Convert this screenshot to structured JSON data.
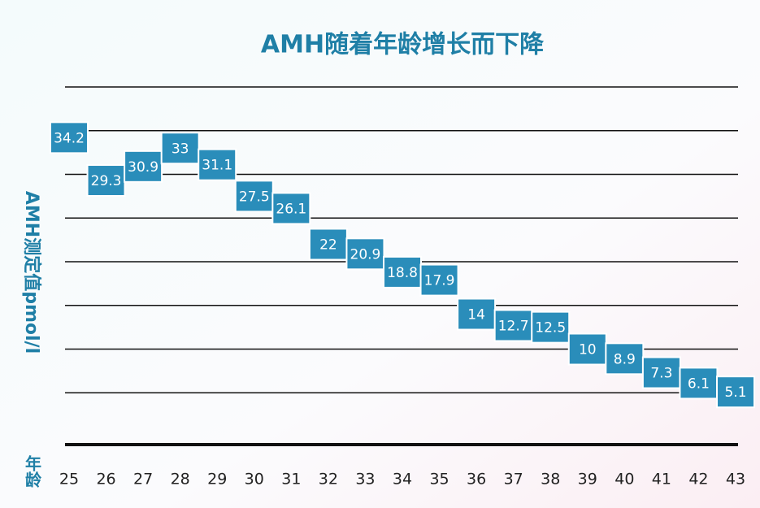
{
  "chart_data": {
    "type": "box-label",
    "title": "AMH随着年龄增长而下降",
    "y_label": "AMH测定值pmol/l",
    "x_label": "年龄",
    "categories": [
      "25",
      "26",
      "27",
      "28",
      "29",
      "30",
      "31",
      "32",
      "33",
      "34",
      "35",
      "36",
      "37",
      "38",
      "39",
      "40",
      "41",
      "42",
      "43"
    ],
    "values": [
      34.2,
      29.3,
      30.9,
      33,
      31.1,
      27.5,
      26.1,
      22,
      20.9,
      18.8,
      17.9,
      14,
      12.7,
      12.5,
      10,
      8.9,
      7.3,
      6.1,
      5.1
    ],
    "color": "#2a8dba",
    "ylim": [
      0,
      40
    ],
    "yticks": [
      5,
      10,
      15,
      20,
      25,
      30,
      35,
      40
    ],
    "grid": true
  }
}
